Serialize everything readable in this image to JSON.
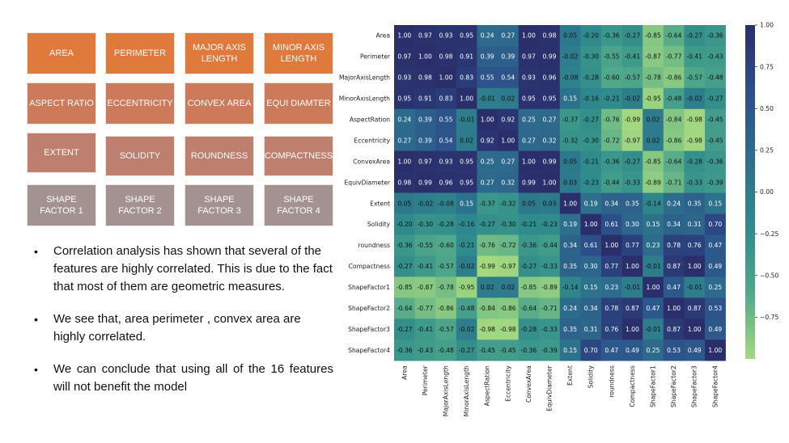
{
  "tiles": [
    {
      "label": "AREA",
      "color": "#e07a3c"
    },
    {
      "label": "PERIMETER",
      "color": "#e07a3c"
    },
    {
      "label": "MAJOR AXIS LENGTH",
      "color": "#e07a3c"
    },
    {
      "label": "MINOR AXIS LENGTH",
      "color": "#e07a3c"
    },
    {
      "label": "ASPECT RATIO",
      "color": "#cc7a5a"
    },
    {
      "label": "ECCENTRICITY",
      "color": "#cc7a5a"
    },
    {
      "label": "CONVEX AREA",
      "color": "#cc7a5a"
    },
    {
      "label": "EQUI DIAMTER",
      "color": "#cc7a5a"
    },
    {
      "label": "EXTENT",
      "color": "#bf7f6e"
    },
    {
      "label": "SOLIDITY",
      "color": "#bf7f6e"
    },
    {
      "label": "ROUNDNESS",
      "color": "#bf7f6e"
    },
    {
      "label": "COMPACTNESS",
      "color": "#bf7f6e"
    },
    {
      "label": "SHAPE FACTOR 1",
      "color": "#a39290"
    },
    {
      "label": "SHAPE FACTOR 2",
      "color": "#a39290"
    },
    {
      "label": "SHAPE FACTOR 3",
      "color": "#a39290"
    },
    {
      "label": "SHAPE FACTOR 4",
      "color": "#a39290"
    }
  ],
  "bullets": [
    "Correlation analysis has shown that several of the features are highly correlated. This is due to the fact that most of them are geometric measures.",
    "We see that, area perimeter , convex area are highly correlated.",
    "We can conclude that using all of the 16 features will not benefit the model"
  ],
  "chart_data": {
    "type": "heatmap",
    "labels": [
      "Area",
      "Perimeter",
      "MajorAxisLength",
      "MinorAxisLength",
      "AspectRation",
      "Eccentricity",
      "ConvexArea",
      "EquivDiameter",
      "Extent",
      "Solidity",
      "roundness",
      "Compactness",
      "ShapeFactor1",
      "ShapeFactor2",
      "ShapeFactor3",
      "ShapeFactor4"
    ],
    "matrix": [
      [
        1.0,
        0.97,
        0.93,
        0.95,
        0.24,
        0.27,
        1.0,
        0.98,
        0.05,
        -0.2,
        -0.36,
        -0.27,
        -0.85,
        -0.64,
        -0.27,
        -0.36
      ],
      [
        0.97,
        1.0,
        0.98,
        0.91,
        0.39,
        0.39,
        0.97,
        0.99,
        -0.02,
        -0.3,
        -0.55,
        -0.41,
        -0.87,
        -0.77,
        -0.41,
        -0.43
      ],
      [
        0.93,
        0.98,
        1.0,
        0.83,
        0.55,
        0.54,
        0.93,
        0.96,
        -0.08,
        -0.28,
        -0.6,
        -0.57,
        -0.78,
        -0.86,
        -0.57,
        -0.48
      ],
      [
        0.95,
        0.91,
        0.83,
        1.0,
        -0.01,
        0.02,
        0.95,
        0.95,
        0.15,
        -0.16,
        -0.21,
        -0.02,
        -0.95,
        -0.48,
        -0.02,
        -0.27
      ],
      [
        0.24,
        0.39,
        0.55,
        -0.01,
        1.0,
        0.92,
        0.25,
        0.27,
        -0.37,
        -0.27,
        -0.76,
        -0.99,
        0.02,
        -0.84,
        -0.98,
        -0.45
      ],
      [
        0.27,
        0.39,
        0.54,
        0.02,
        0.92,
        1.0,
        0.27,
        0.32,
        -0.32,
        -0.3,
        -0.72,
        -0.97,
        0.02,
        -0.86,
        -0.98,
        -0.45
      ],
      [
        1.0,
        0.97,
        0.93,
        0.95,
        0.25,
        0.27,
        1.0,
        0.99,
        0.05,
        -0.21,
        -0.36,
        -0.27,
        -0.85,
        -0.64,
        -0.28,
        -0.36
      ],
      [
        0.98,
        0.99,
        0.96,
        0.95,
        0.27,
        0.32,
        0.99,
        1.0,
        0.03,
        -0.23,
        -0.44,
        -0.33,
        -0.89,
        -0.71,
        -0.33,
        -0.39
      ],
      [
        0.05,
        -0.02,
        -0.08,
        0.15,
        -0.37,
        -0.32,
        0.05,
        0.03,
        1.0,
        0.19,
        0.34,
        0.35,
        -0.14,
        0.24,
        0.35,
        0.15
      ],
      [
        -0.2,
        -0.3,
        -0.28,
        -0.16,
        -0.27,
        -0.3,
        -0.21,
        -0.23,
        0.19,
        1.0,
        0.61,
        0.3,
        0.15,
        0.34,
        0.31,
        0.7
      ],
      [
        -0.36,
        -0.55,
        -0.6,
        -0.21,
        -0.76,
        -0.72,
        -0.36,
        -0.44,
        0.34,
        0.61,
        1.0,
        0.77,
        0.23,
        0.78,
        0.76,
        0.47
      ],
      [
        -0.27,
        -0.41,
        -0.57,
        -0.02,
        -0.99,
        -0.97,
        -0.27,
        -0.33,
        0.35,
        0.3,
        0.77,
        1.0,
        -0.01,
        0.87,
        1.0,
        0.49
      ],
      [
        -0.85,
        -0.87,
        -0.78,
        -0.95,
        0.02,
        0.02,
        -0.85,
        -0.89,
        -0.14,
        0.15,
        0.23,
        -0.01,
        1.0,
        0.47,
        -0.01,
        0.25
      ],
      [
        -0.64,
        -0.77,
        -0.86,
        -0.48,
        -0.84,
        -0.86,
        -0.64,
        -0.71,
        0.24,
        0.34,
        0.78,
        0.87,
        0.47,
        1.0,
        0.87,
        0.53
      ],
      [
        -0.27,
        -0.41,
        -0.57,
        -0.02,
        -0.98,
        -0.98,
        -0.28,
        -0.33,
        0.35,
        0.31,
        0.76,
        1.0,
        -0.01,
        0.87,
        1.0,
        0.49
      ],
      [
        -0.36,
        -0.43,
        -0.48,
        -0.27,
        -0.45,
        -0.45,
        -0.36,
        -0.39,
        0.15,
        0.7,
        0.47,
        0.49,
        0.25,
        0.53,
        0.49,
        1.0
      ]
    ],
    "vmin": -1.0,
    "vmax": 1.0,
    "colorbar_ticks": [
      "1.00",
      "0.75",
      "0.50",
      "0.25",
      "0.00",
      "−0.25",
      "−0.50",
      "−0.75"
    ],
    "colormap": [
      "#a5d97f",
      "#4fa889",
      "#2e8a8c",
      "#2d6e8c",
      "#2c4f8a",
      "#2a2f6b"
    ]
  }
}
